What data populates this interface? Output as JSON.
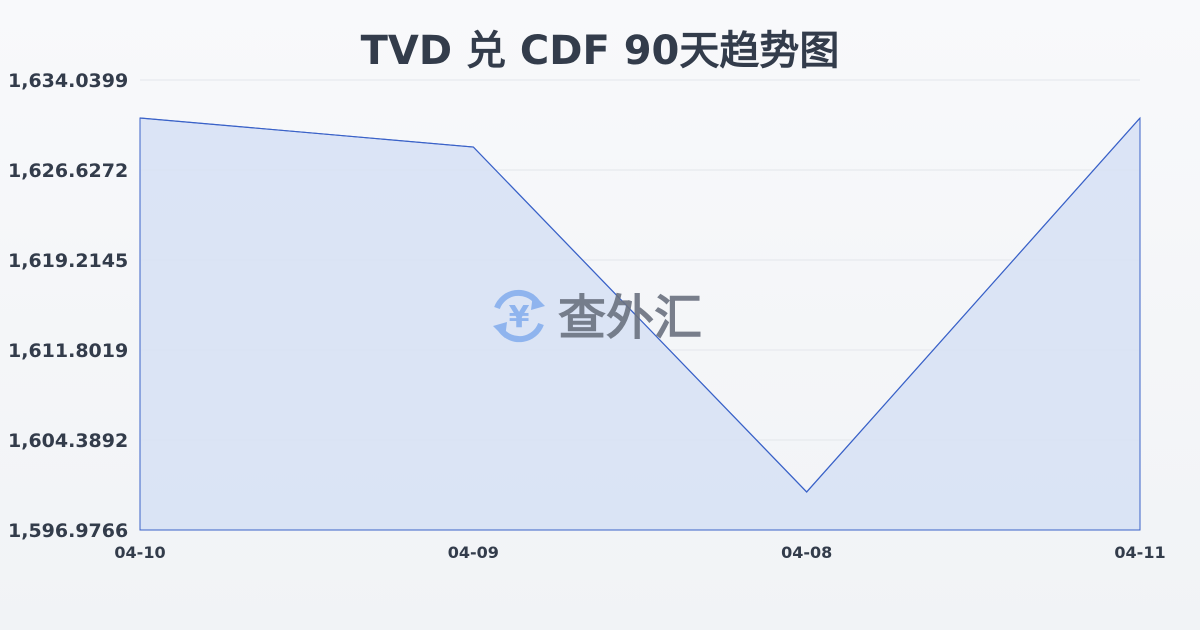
{
  "chart_data": {
    "type": "area",
    "title": "TVD 兑 CDF 90天趋势图",
    "categories": [
      "04-10",
      "04-09",
      "04-08",
      "04-11"
    ],
    "values": [
      1630.91,
      1628.52,
      1600.11,
      1630.91
    ],
    "ylim": [
      1596.9766,
      1634.0399
    ],
    "yticks": [
      "1,596.9766",
      "1,604.3892",
      "1,611.8019",
      "1,619.2145",
      "1,626.6272",
      "1,634.0399"
    ],
    "grid": true,
    "line_color": "#3a62c8",
    "fill_color": "#d6e1f5"
  },
  "watermark": {
    "text": "查外汇",
    "icon": "yen-exchange-icon",
    "icon_color": "#8fb4ee"
  }
}
